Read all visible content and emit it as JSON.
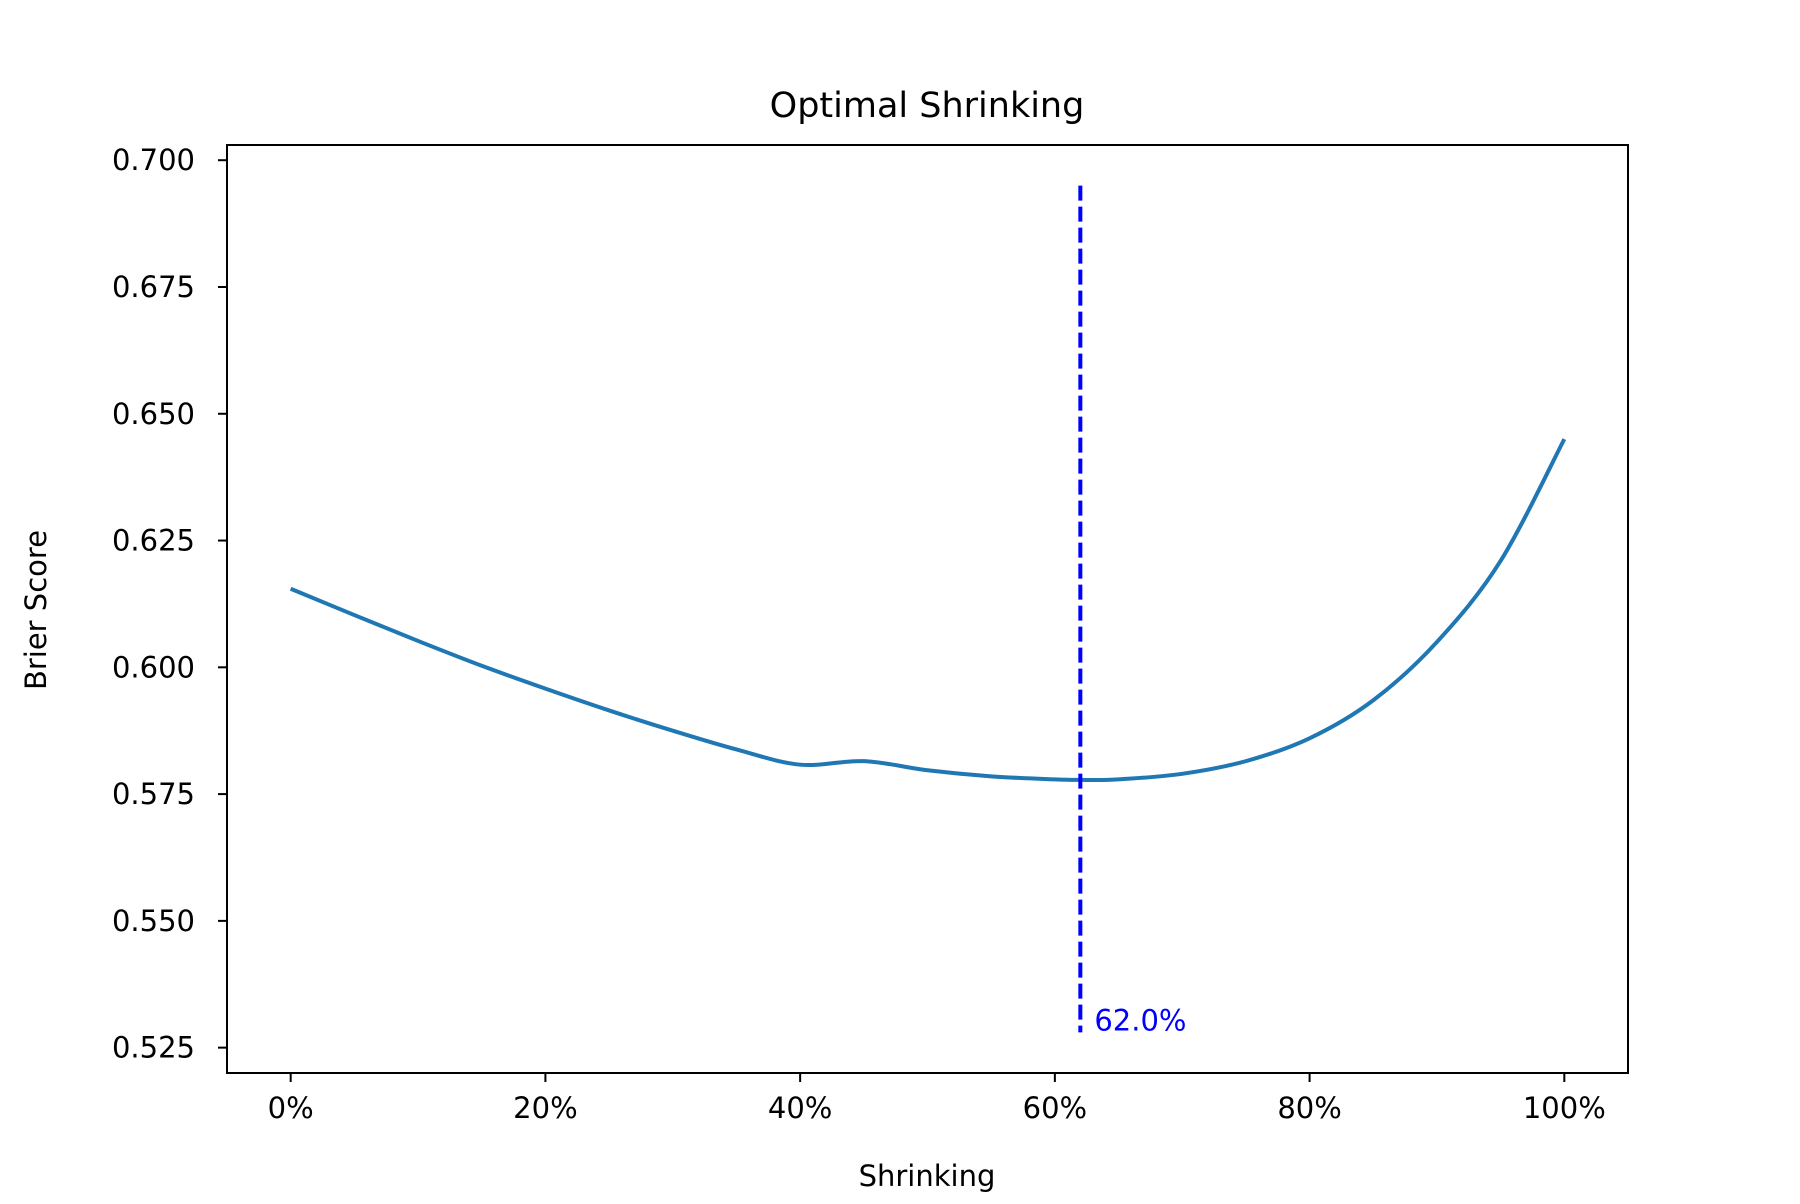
{
  "chart_data": {
    "type": "line",
    "title": "Optimal Shrinking",
    "xlabel": "Shrinking",
    "ylabel": "Brier Score",
    "xlim": [
      -0.05,
      1.05
    ],
    "ylim": [
      0.52,
      0.703
    ],
    "xticks": [
      0,
      0.2,
      0.4,
      0.6,
      0.8,
      1.0
    ],
    "xtick_labels": [
      "0%",
      "20%",
      "40%",
      "60%",
      "80%",
      "100%"
    ],
    "yticks": [
      0.525,
      0.55,
      0.575,
      0.6,
      0.625,
      0.65,
      0.675,
      0.7
    ],
    "ytick_labels": [
      "0.525",
      "0.550",
      "0.575",
      "0.600",
      "0.625",
      "0.650",
      "0.675",
      "0.700"
    ],
    "grid": false,
    "series": [
      {
        "color": "#1f77b4",
        "x": [
          0,
          0.05,
          0.1,
          0.15,
          0.2,
          0.25,
          0.3,
          0.35,
          0.4,
          0.45,
          0.5,
          0.55,
          0.6,
          0.62,
          0.65,
          0.7,
          0.75,
          0.8,
          0.85,
          0.9,
          0.95,
          1.0
        ],
        "y": [
          0.6155,
          0.6103,
          0.6052,
          0.6003,
          0.5958,
          0.5915,
          0.5875,
          0.5838,
          0.5808,
          0.5815,
          0.5797,
          0.5785,
          0.5779,
          0.5778,
          0.5779,
          0.579,
          0.5815,
          0.586,
          0.5935,
          0.605,
          0.621,
          0.645
        ]
      }
    ],
    "vline": {
      "x": 0.62,
      "ymin": 0.528,
      "ymax": 0.695,
      "color": "#0000ff",
      "style": "dashed",
      "label": "62.0%"
    }
  }
}
